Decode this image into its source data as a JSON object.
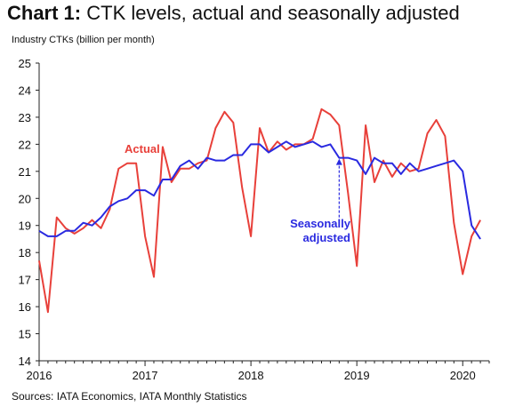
{
  "header": {
    "title_bold": "Chart 1:",
    "title_rest": "CTK levels, actual and seasonally adjusted"
  },
  "footer": {
    "source": "Sources: IATA Economics, IATA Monthly Statistics"
  },
  "chart_data": {
    "type": "line",
    "title": "Chart 1: CTK levels, actual and seasonally adjusted",
    "ylabel": "Industry CTKs (billion per month)",
    "xlabel": "",
    "ylim": [
      14,
      25
    ],
    "xlim": [
      2016.0,
      2020.25
    ],
    "yticks": [
      14,
      15,
      16,
      17,
      18,
      19,
      20,
      21,
      22,
      23,
      24,
      25
    ],
    "xticks": [
      2016,
      2017,
      2018,
      2019,
      2020
    ],
    "grid": false,
    "colors": {
      "actual": "#e8403a",
      "adjusted": "#2a2ae0"
    },
    "annotations": [
      {
        "text": "Actual",
        "series": "Actual"
      },
      {
        "text": "Seasonally adjusted",
        "lines": [
          "Seasonally",
          "adjusted"
        ],
        "series": "Seasonally adjusted",
        "pointer_at": "2018-11"
      }
    ],
    "dates": [
      "2016-01",
      "2016-02",
      "2016-03",
      "2016-04",
      "2016-05",
      "2016-06",
      "2016-07",
      "2016-08",
      "2016-09",
      "2016-10",
      "2016-11",
      "2016-12",
      "2017-01",
      "2017-02",
      "2017-03",
      "2017-04",
      "2017-05",
      "2017-06",
      "2017-07",
      "2017-08",
      "2017-09",
      "2017-10",
      "2017-11",
      "2017-12",
      "2018-01",
      "2018-02",
      "2018-03",
      "2018-04",
      "2018-05",
      "2018-06",
      "2018-07",
      "2018-08",
      "2018-09",
      "2018-10",
      "2018-11",
      "2018-12",
      "2019-01",
      "2019-02",
      "2019-03",
      "2019-04",
      "2019-05",
      "2019-06",
      "2019-07",
      "2019-08",
      "2019-09",
      "2019-10",
      "2019-11",
      "2019-12",
      "2020-01",
      "2020-02",
      "2020-03"
    ],
    "series": [
      {
        "name": "Actual",
        "values": [
          17.7,
          15.8,
          19.3,
          18.9,
          18.7,
          18.9,
          19.2,
          18.9,
          19.6,
          21.1,
          21.3,
          21.3,
          18.6,
          17.1,
          21.9,
          20.6,
          21.1,
          21.1,
          21.3,
          21.4,
          22.6,
          23.2,
          22.8,
          20.4,
          18.6,
          22.6,
          21.7,
          22.1,
          21.8,
          22.0,
          22.0,
          22.2,
          23.3,
          23.1,
          22.7,
          20.2,
          17.5,
          22.7,
          20.6,
          21.4,
          20.8,
          21.3,
          21.0,
          21.1,
          22.4,
          22.9,
          22.3,
          19.1,
          17.2,
          18.6,
          19.2
        ]
      },
      {
        "name": "Seasonally adjusted",
        "values": [
          18.8,
          18.6,
          18.6,
          18.8,
          18.8,
          19.1,
          19.0,
          19.3,
          19.7,
          19.9,
          20.0,
          20.3,
          20.3,
          20.1,
          20.7,
          20.7,
          21.2,
          21.4,
          21.1,
          21.5,
          21.4,
          21.4,
          21.6,
          21.6,
          22.0,
          22.0,
          21.7,
          21.9,
          22.1,
          21.9,
          22.0,
          22.1,
          21.9,
          22.0,
          21.5,
          21.5,
          21.4,
          20.9,
          21.5,
          21.3,
          21.3,
          20.9,
          21.3,
          21.0,
          21.1,
          21.2,
          21.3,
          21.4,
          21.0,
          19.0,
          18.5
        ]
      }
    ]
  }
}
